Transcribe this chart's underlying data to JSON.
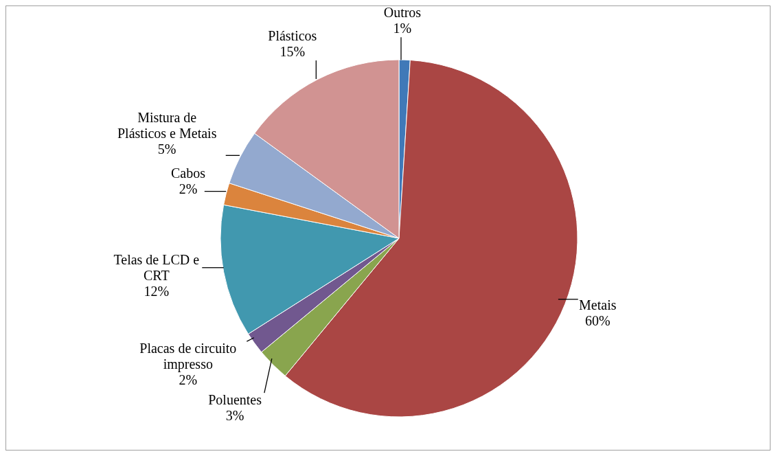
{
  "chart_data": {
    "type": "pie",
    "categories": [
      "Outros",
      "Metais",
      "Poluentes",
      "Placas de circuito\nimpresso",
      "Telas de LCD e\nCRT",
      "Cabos",
      "Mistura de\nPlásticos e Metais",
      "Plásticos"
    ],
    "values": [
      1,
      60,
      3,
      2,
      12,
      2,
      5,
      15
    ],
    "value_labels": [
      "1%",
      "60%",
      "3%",
      "2%",
      "12%",
      "2%",
      "5%",
      "15%"
    ],
    "colors": [
      "#4079b8",
      "#aa4644",
      "#89a54e",
      "#71588f",
      "#4198af",
      "#db843d",
      "#93a9cf",
      "#d19392"
    ],
    "legend": false
  }
}
